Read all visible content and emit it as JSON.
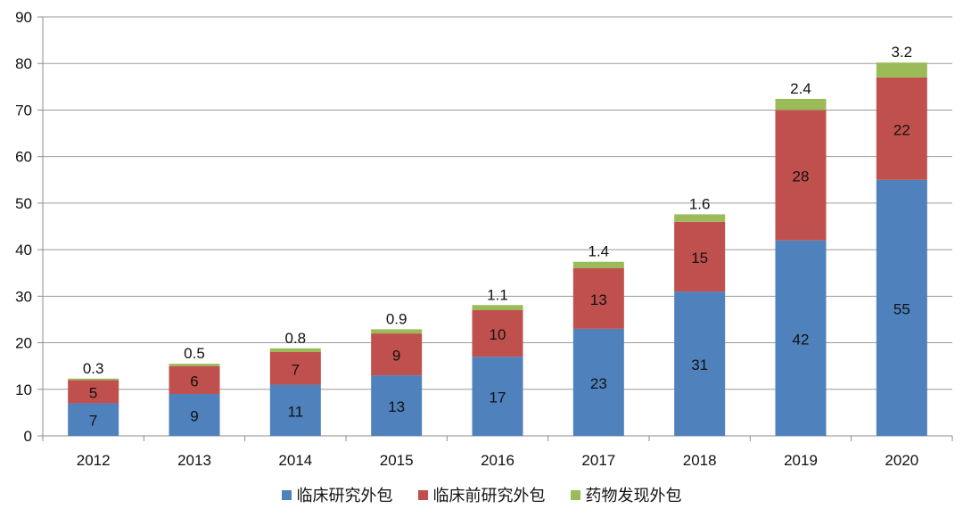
{
  "chart_data": {
    "type": "bar",
    "stacked": true,
    "categories": [
      "2012",
      "2013",
      "2014",
      "2015",
      "2016",
      "2017",
      "2018",
      "2019",
      "2020"
    ],
    "series": [
      {
        "name": "临床研究外包",
        "color": "#4f81bd",
        "values": [
          7,
          9,
          11,
          13,
          17,
          23,
          31,
          42,
          55
        ]
      },
      {
        "name": "临床前研究外包",
        "color": "#c0504d",
        "values": [
          5,
          6,
          7,
          9,
          10,
          13,
          15,
          28,
          22
        ]
      },
      {
        "name": "药物发现外包",
        "color": "#9bbb59",
        "values": [
          0.3,
          0.5,
          0.8,
          0.9,
          1.1,
          1.4,
          1.6,
          2.4,
          3.2
        ]
      }
    ],
    "ylim": [
      0,
      90
    ],
    "yticks": [
      0,
      10,
      20,
      30,
      40,
      50,
      60,
      70,
      80,
      90
    ],
    "grid": true,
    "legend_position": "bottom",
    "title": "",
    "xlabel": "",
    "ylabel": ""
  }
}
